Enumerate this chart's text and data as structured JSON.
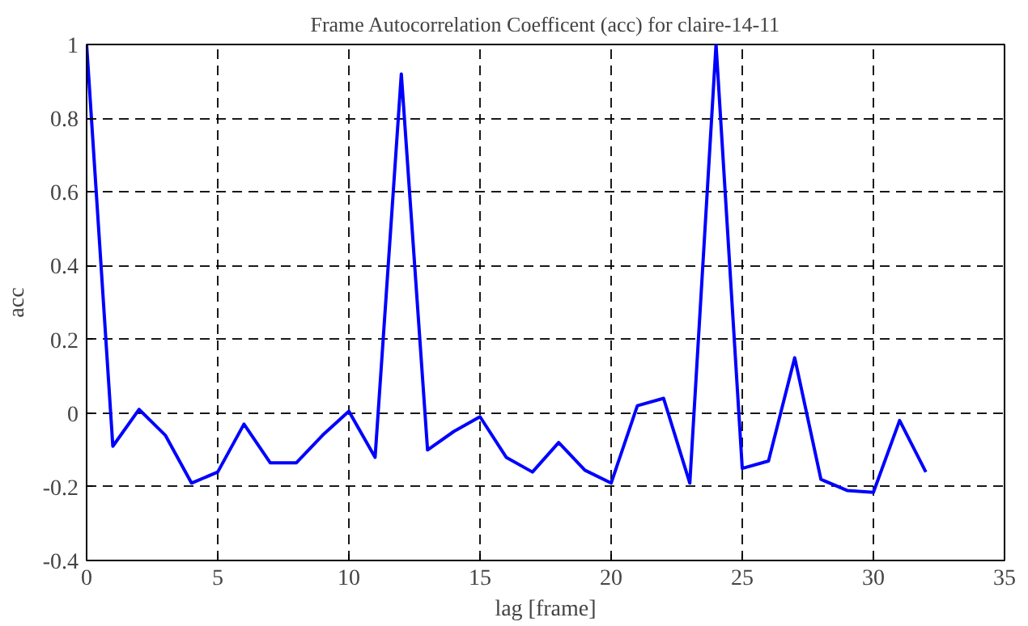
{
  "chart_data": {
    "type": "line",
    "title": "Frame Autocorrelation Coefficent (acc) for claire-14-11",
    "xlabel": "lag [frame]",
    "ylabel": "acc",
    "x": [
      0,
      1,
      2,
      3,
      4,
      5,
      6,
      7,
      8,
      9,
      10,
      11,
      12,
      13,
      14,
      15,
      16,
      17,
      18,
      19,
      20,
      21,
      22,
      23,
      24,
      25,
      26,
      27,
      28,
      29,
      30,
      31,
      32
    ],
    "series": [
      {
        "color": "#0000ff",
        "values": [
          1.0,
          -0.09,
          0.01,
          -0.06,
          -0.19,
          -0.16,
          -0.03,
          -0.135,
          -0.135,
          -0.06,
          0.005,
          -0.12,
          0.92,
          -0.1,
          -0.05,
          -0.01,
          -0.12,
          -0.16,
          -0.08,
          -0.155,
          -0.19,
          0.02,
          0.04,
          -0.19,
          1.0,
          -0.15,
          -0.13,
          0.15,
          -0.18,
          -0.21,
          -0.215,
          -0.02,
          -0.16
        ]
      }
    ],
    "xlim": [
      0,
      35
    ],
    "xticks": [
      0,
      5,
      10,
      15,
      20,
      25,
      30,
      35
    ],
    "ylim": [
      -0.4,
      1
    ],
    "yticks": [
      -0.4,
      -0.2,
      0,
      0.2,
      0.4,
      0.6,
      0.8,
      1
    ],
    "grid": true,
    "line_style": "solid"
  }
}
